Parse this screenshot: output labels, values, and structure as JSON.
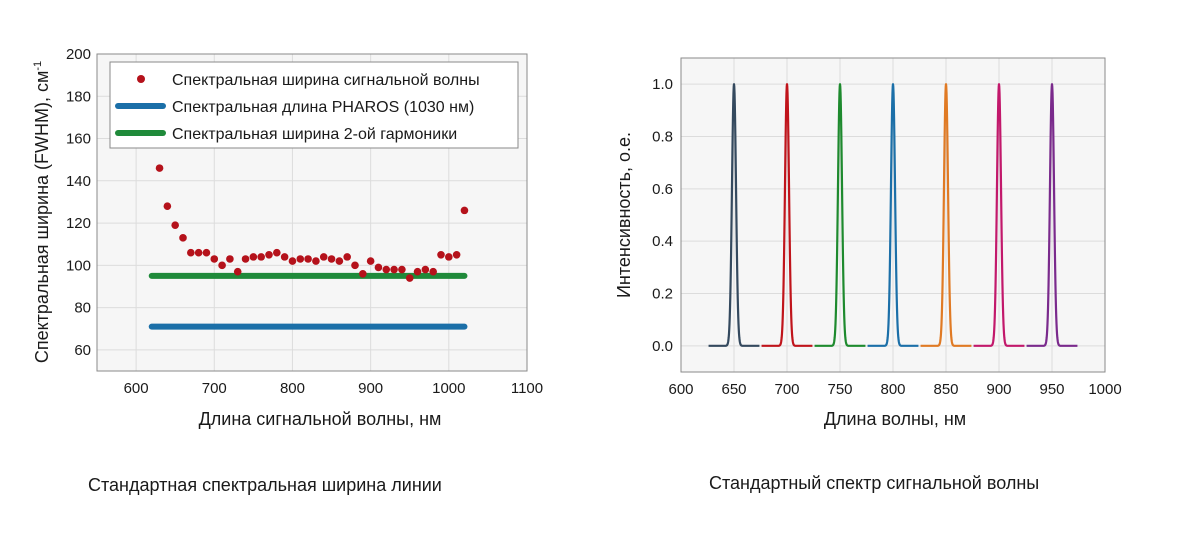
{
  "chart_data": [
    {
      "type": "scatter",
      "xlabel": "Длина сигнальной волны, нм",
      "ylabel": "Спектральная ширина (FWHM), см",
      "ylabel_sup": "-1",
      "xlim": [
        550,
        1100
      ],
      "ylim": [
        50,
        200
      ],
      "xticks": [
        600,
        700,
        800,
        900,
        1000,
        1100
      ],
      "yticks": [
        60,
        80,
        100,
        120,
        140,
        160,
        180,
        200
      ],
      "grid": true,
      "legend_position": "top-left",
      "caption": "Стандартная спектральная ширина линии",
      "series": [
        {
          "name": "Спектральная ширина сигнальной волны",
          "kind": "points",
          "color": "#b5121b",
          "x": [
            630,
            640,
            650,
            660,
            670,
            680,
            690,
            700,
            710,
            720,
            730,
            740,
            750,
            760,
            770,
            780,
            790,
            800,
            810,
            820,
            830,
            840,
            850,
            860,
            870,
            880,
            890,
            900,
            910,
            920,
            930,
            940,
            950,
            960,
            970,
            980,
            990,
            1000,
            1010,
            1020
          ],
          "y": [
            146,
            128,
            119,
            113,
            106,
            106,
            106,
            103,
            100,
            103,
            97,
            103,
            104,
            104,
            105,
            106,
            104,
            102,
            103,
            103,
            102,
            104,
            103,
            102,
            104,
            100,
            96,
            102,
            99,
            98,
            98,
            98,
            94,
            97,
            98,
            97,
            105,
            104,
            105,
            126
          ]
        },
        {
          "name": "Спектральная длина PHAROS (1030 нм)",
          "kind": "line",
          "color": "#1b6fa8",
          "x": [
            620,
            1020
          ],
          "y": [
            71,
            71
          ]
        },
        {
          "name": "Спектральная ширина 2-ой гармоники",
          "kind": "line",
          "color": "#1f8a3a",
          "x": [
            620,
            1020
          ],
          "y": [
            95,
            95
          ]
        }
      ]
    },
    {
      "type": "line",
      "xlabel": "Длина волны, нм",
      "ylabel": "Интенсивность, о.е.",
      "xlim": [
        600,
        1000
      ],
      "ylim": [
        -0.1,
        1.1
      ],
      "xticks": [
        600,
        650,
        700,
        750,
        800,
        850,
        900,
        950,
        1000
      ],
      "yticks": [
        0.0,
        0.2,
        0.4,
        0.6,
        0.8,
        1.0
      ],
      "ytick_format": "0.0",
      "grid": true,
      "caption": "Стандартный спектр сигнальной волны",
      "series": [
        {
          "center": 650,
          "fwhm": 4.5,
          "color": "#34495e"
        },
        {
          "center": 700,
          "fwhm": 4.5,
          "color": "#c0141b"
        },
        {
          "center": 750,
          "fwhm": 4.5,
          "color": "#1e8a2e"
        },
        {
          "center": 800,
          "fwhm": 4.5,
          "color": "#1b6fa8"
        },
        {
          "center": 850,
          "fwhm": 4.5,
          "color": "#e07a24"
        },
        {
          "center": 900,
          "fwhm": 4.5,
          "color": "#c2186b"
        },
        {
          "center": 950,
          "fwhm": 4.5,
          "color": "#7a2a8c"
        }
      ]
    }
  ]
}
